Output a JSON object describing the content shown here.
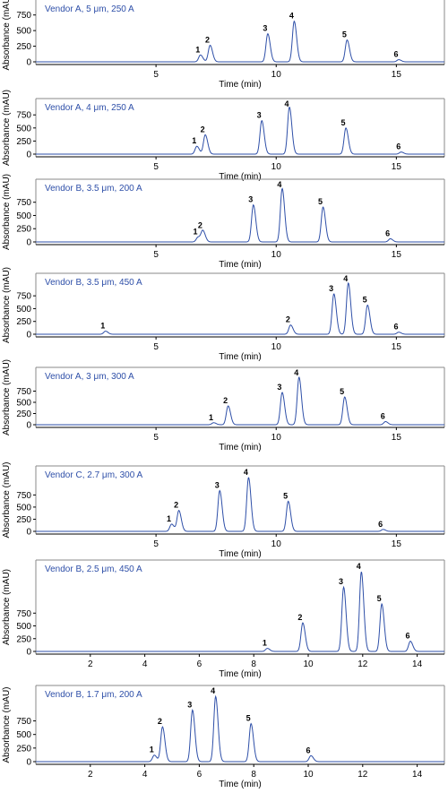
{
  "chart_data": [
    {
      "type": "line",
      "title": "Vendor A, 5 μm, 250 A",
      "xlabel": "Time (min)",
      "ylabel": "Absorbance (mAU)",
      "xlim": [
        0,
        17
      ],
      "ylim": [
        -25,
        875
      ],
      "xticks": [
        5,
        10,
        15
      ],
      "yticks": [
        0,
        250,
        500,
        750
      ],
      "peaks": [
        {
          "label": "1",
          "x": 6.85,
          "y": 110
        },
        {
          "label": "2",
          "x": 7.25,
          "y": 265
        },
        {
          "label": "3",
          "x": 9.65,
          "y": 450
        },
        {
          "label": "4",
          "x": 10.75,
          "y": 650
        },
        {
          "label": "5",
          "x": 12.95,
          "y": 350
        },
        {
          "label": "6",
          "x": 15.1,
          "y": 35
        }
      ]
    },
    {
      "type": "line",
      "title": "Vendor A, 4 μm, 250 A",
      "xlabel": "Time (min)",
      "ylabel": "Absorbance (mAU)",
      "xlim": [
        0,
        17
      ],
      "ylim": [
        -25,
        925
      ],
      "xticks": [
        5,
        10,
        15
      ],
      "yticks": [
        0,
        250,
        500,
        750
      ],
      "peaks": [
        {
          "label": "1",
          "x": 6.7,
          "y": 150
        },
        {
          "label": "2",
          "x": 7.05,
          "y": 370
        },
        {
          "label": "3",
          "x": 9.4,
          "y": 640
        },
        {
          "label": "4",
          "x": 10.55,
          "y": 900
        },
        {
          "label": "5",
          "x": 12.9,
          "y": 500
        },
        {
          "label": "6",
          "x": 15.2,
          "y": 40
        }
      ]
    },
    {
      "type": "line",
      "title": "Vendor B, 3.5 μm, 200 A",
      "xlabel": "Time (min)",
      "ylabel": "Absorbance (mAU)",
      "xlim": [
        0,
        17
      ],
      "ylim": [
        -25,
        1050
      ],
      "xticks": [
        5,
        10,
        15
      ],
      "yticks": [
        0,
        250,
        500,
        750
      ],
      "peaks": [
        {
          "label": "1",
          "x": 6.75,
          "y": 90
        },
        {
          "label": "2",
          "x": 6.95,
          "y": 210
        },
        {
          "label": "3",
          "x": 9.05,
          "y": 700
        },
        {
          "label": "4",
          "x": 10.25,
          "y": 1010
        },
        {
          "label": "5",
          "x": 11.95,
          "y": 660
        },
        {
          "label": "6",
          "x": 14.75,
          "y": 60
        }
      ]
    },
    {
      "type": "line",
      "title": "Vendor B, 3.5 μm, 450 A",
      "xlabel": "Time (min)",
      "ylabel": "Absorbance (mAU)",
      "xlim": [
        0,
        17
      ],
      "ylim": [
        -25,
        1050
      ],
      "xticks": [
        5,
        10,
        15
      ],
      "yticks": [
        0,
        250,
        500,
        750
      ],
      "peaks": [
        {
          "label": "1",
          "x": 2.9,
          "y": 60
        },
        {
          "label": "2",
          "x": 10.6,
          "y": 180
        },
        {
          "label": "3",
          "x": 12.4,
          "y": 790
        },
        {
          "label": "4",
          "x": 13.0,
          "y": 1000
        },
        {
          "label": "5",
          "x": 13.8,
          "y": 570
        },
        {
          "label": "6",
          "x": 15.1,
          "y": 40
        }
      ]
    },
    {
      "type": "line",
      "title": "Vendor A, 3 μm, 300 A",
      "xlabel": "Time (min)",
      "ylabel": "Absorbance (mAU)",
      "xlim": [
        0,
        17
      ],
      "ylim": [
        -25,
        1120
      ],
      "xticks": [
        5,
        10,
        15
      ],
      "yticks": [
        0,
        250,
        500,
        750
      ],
      "peaks": [
        {
          "label": "1",
          "x": 7.4,
          "y": 45
        },
        {
          "label": "2",
          "x": 8.0,
          "y": 420
        },
        {
          "label": "3",
          "x": 10.25,
          "y": 720
        },
        {
          "label": "4",
          "x": 10.95,
          "y": 1060
        },
        {
          "label": "5",
          "x": 12.85,
          "y": 620
        },
        {
          "label": "6",
          "x": 14.55,
          "y": 70
        }
      ]
    },
    {
      "type": "line",
      "title": "Vendor C, 2.7 μm, 300 A",
      "xlabel": "Time (min)",
      "ylabel": "Absorbance (mAU)",
      "xlim": [
        0,
        17
      ],
      "ylim": [
        -25,
        1200
      ],
      "xticks": [
        5,
        10,
        15
      ],
      "yticks": [
        0,
        250,
        500,
        750
      ],
      "peaks": [
        {
          "label": "1",
          "x": 5.65,
          "y": 150
        },
        {
          "label": "2",
          "x": 5.95,
          "y": 430
        },
        {
          "label": "3",
          "x": 7.65,
          "y": 840
        },
        {
          "label": "4",
          "x": 8.85,
          "y": 1110
        },
        {
          "label": "5",
          "x": 10.5,
          "y": 620
        },
        {
          "label": "6",
          "x": 14.45,
          "y": 40
        }
      ]
    },
    {
      "type": "line",
      "title": "Vendor B, 2.5 μm, 450 A",
      "xlabel": "Time (min)",
      "ylabel": "Absorbance (mAU)",
      "xlim": [
        0,
        15
      ],
      "ylim": [
        -50,
        1650
      ],
      "xticks": [
        2,
        4,
        6,
        8,
        10,
        12,
        14
      ],
      "yticks": [
        0,
        250,
        500,
        750
      ],
      "peaks": [
        {
          "label": "1",
          "x": 8.5,
          "y": 60
        },
        {
          "label": "2",
          "x": 9.8,
          "y": 560
        },
        {
          "label": "3",
          "x": 11.3,
          "y": 1260
        },
        {
          "label": "4",
          "x": 11.95,
          "y": 1560
        },
        {
          "label": "5",
          "x": 12.7,
          "y": 930
        },
        {
          "label": "6",
          "x": 13.75,
          "y": 200
        }
      ]
    },
    {
      "type": "line",
      "title": "Vendor B, 1.7 μm, 200 A",
      "xlabel": "Time (min)",
      "ylabel": "Absorbance (mAU)",
      "xlim": [
        0,
        15
      ],
      "ylim": [
        -25,
        1270
      ],
      "xticks": [
        2,
        4,
        6,
        8,
        10,
        12,
        14
      ],
      "yticks": [
        0,
        250,
        500,
        750
      ],
      "peaks": [
        {
          "label": "1",
          "x": 4.35,
          "y": 120
        },
        {
          "label": "2",
          "x": 4.65,
          "y": 640
        },
        {
          "label": "3",
          "x": 5.75,
          "y": 950
        },
        {
          "label": "4",
          "x": 6.6,
          "y": 1200
        },
        {
          "label": "5",
          "x": 7.9,
          "y": 700
        },
        {
          "label": "6",
          "x": 10.1,
          "y": 110
        }
      ]
    }
  ],
  "colors": {
    "trace": "#2e4fa8",
    "title": "#2e4fa8",
    "axis": "#000000",
    "frame": "#8a8a8a"
  }
}
